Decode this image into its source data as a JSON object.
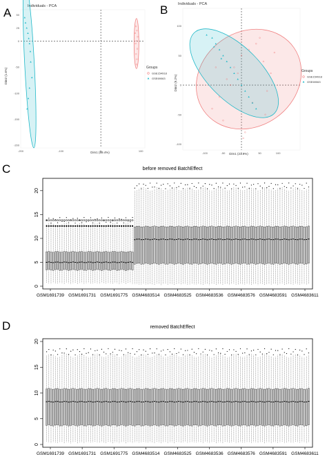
{
  "panels": {
    "a": {
      "letter": "A",
      "title": "Individuals - PCA"
    },
    "b": {
      "letter": "B",
      "title": "Individuals - PCA"
    },
    "c": {
      "letter": "C"
    },
    "d": {
      "letter": "D"
    }
  },
  "colors": {
    "series1": "#f08080",
    "series2": "#1fb8c8",
    "box_fill": "#c8c8c8"
  },
  "chart_data": [
    {
      "type": "scatter",
      "title": "Individuals - PCA",
      "xlabel": "Dim1 (89.4%)",
      "ylabel": "Dim2 (1.6%)",
      "xlim": [
        -200,
        110
      ],
      "ylim": [
        -205,
        60
      ],
      "xticks": [
        -200,
        -100,
        0,
        100
      ],
      "yticks": [
        -200,
        -150,
        -100,
        -50,
        0,
        25,
        50
      ],
      "legend": {
        "title": "Groups",
        "position": "right",
        "entries": [
          "GSE154918",
          "GSE69063"
        ]
      },
      "series": [
        {
          "name": "GSE154918",
          "marker": "circle",
          "x": [
            88,
            90,
            86,
            92,
            89,
            87,
            91,
            88,
            90,
            89
          ],
          "y": [
            28,
            20,
            15,
            8,
            0,
            -5,
            -15,
            -25,
            -35,
            -45
          ]
        },
        {
          "name": "GSE69063",
          "marker": "triangle",
          "x": [
            -190,
            -188,
            -185,
            -182,
            -180,
            -178,
            -176,
            -175,
            -172,
            -178,
            -181,
            -184
          ],
          "y": [
            45,
            35,
            25,
            15,
            5,
            -5,
            -20,
            -40,
            -70,
            -90,
            -110,
            -130
          ]
        }
      ],
      "ellipses": [
        {
          "series": "GSE154918",
          "cx": 89,
          "cy": -5,
          "rx": 6,
          "ry": 48,
          "angle": 0
        },
        {
          "series": "GSE69063",
          "cx": -178,
          "cy": -45,
          "rx": 12,
          "ry": 160,
          "angle": -3
        }
      ]
    },
    {
      "type": "scatter",
      "title": "Individuals - PCA",
      "xlabel": "Dim1 (21.9%)",
      "ylabel": "Dim2 (9.2%)",
      "xlim": [
        -160,
        160
      ],
      "ylim": [
        -110,
        130
      ],
      "xticks": [
        -100,
        -50,
        0,
        50,
        100
      ],
      "yticks": [
        -100,
        -50,
        0,
        50,
        100
      ],
      "legend": {
        "title": "Groups",
        "position": "right",
        "entries": [
          "GSE154918",
          "GSE69063"
        ]
      },
      "series": [
        {
          "name": "GSE154918",
          "marker": "circle",
          "x": [
            -80,
            -60,
            -40,
            -20,
            0,
            20,
            40,
            60,
            80,
            -50,
            10,
            70,
            -30,
            30,
            50,
            90,
            -10,
            65,
            -70,
            5
          ],
          "y": [
            -40,
            -20,
            10,
            30,
            50,
            60,
            70,
            40,
            20,
            -60,
            -80,
            -10,
            0,
            -30,
            80,
            55,
            20,
            -50,
            30,
            -90
          ]
        },
        {
          "name": "GSE69063",
          "marker": "triangle",
          "x": [
            -95,
            -80,
            -70,
            -60,
            -50,
            -40,
            -30,
            -20,
            -10,
            0,
            10,
            20,
            30,
            40,
            -75,
            -55
          ],
          "y": [
            85,
            80,
            70,
            60,
            50,
            40,
            30,
            20,
            10,
            0,
            -10,
            -20,
            -30,
            -40,
            65,
            45
          ]
        }
      ],
      "ellipses": [
        {
          "series": "GSE154918",
          "cx": 20,
          "cy": 10,
          "rx": 150,
          "ry": 80,
          "angle": -35
        },
        {
          "series": "GSE69063",
          "cx": -20,
          "cy": 20,
          "rx": 155,
          "ry": 45,
          "angle": 45
        }
      ]
    },
    {
      "type": "box",
      "title": "before removed BatchEffect",
      "ylim": [
        0,
        22
      ],
      "yticks": [
        0,
        5,
        10,
        15,
        20
      ],
      "xtick_labels": [
        "GSM1691739",
        "GSM1691731",
        "GSM1691775",
        "GSM4683514",
        "GSM4683525",
        "GSM4683536",
        "GSM4683576",
        "GSM4683591",
        "GSM4683611"
      ],
      "groups": [
        {
          "count": 40,
          "q1": 3.4,
          "median": 5.0,
          "q3": 7.2,
          "whisker_high": 13.0,
          "whisker_low": 0.4,
          "outlier_high": 13.8
        },
        {
          "count": 80,
          "q1": 4.7,
          "median": 9.8,
          "q3": 12.5,
          "whisker_high": 20.4,
          "whisker_low": 0.2,
          "outlier_high": 21.0
        }
      ]
    },
    {
      "type": "box",
      "title": "removed BatchEffect",
      "ylim": [
        0,
        20
      ],
      "yticks": [
        0,
        5,
        10,
        15,
        20
      ],
      "xtick_labels": [
        "GSM1691739",
        "GSM1691731",
        "GSM1691775",
        "GSM4683514",
        "GSM4683525",
        "GSM4683536",
        "GSM4683576",
        "GSM4683591",
        "GSM4683611"
      ],
      "groups": [
        {
          "count": 120,
          "q1": 3.7,
          "median": 8.3,
          "q3": 10.8,
          "whisker_high": 17.3,
          "whisker_low": 0.2,
          "outlier_high": 18.0
        }
      ]
    }
  ]
}
